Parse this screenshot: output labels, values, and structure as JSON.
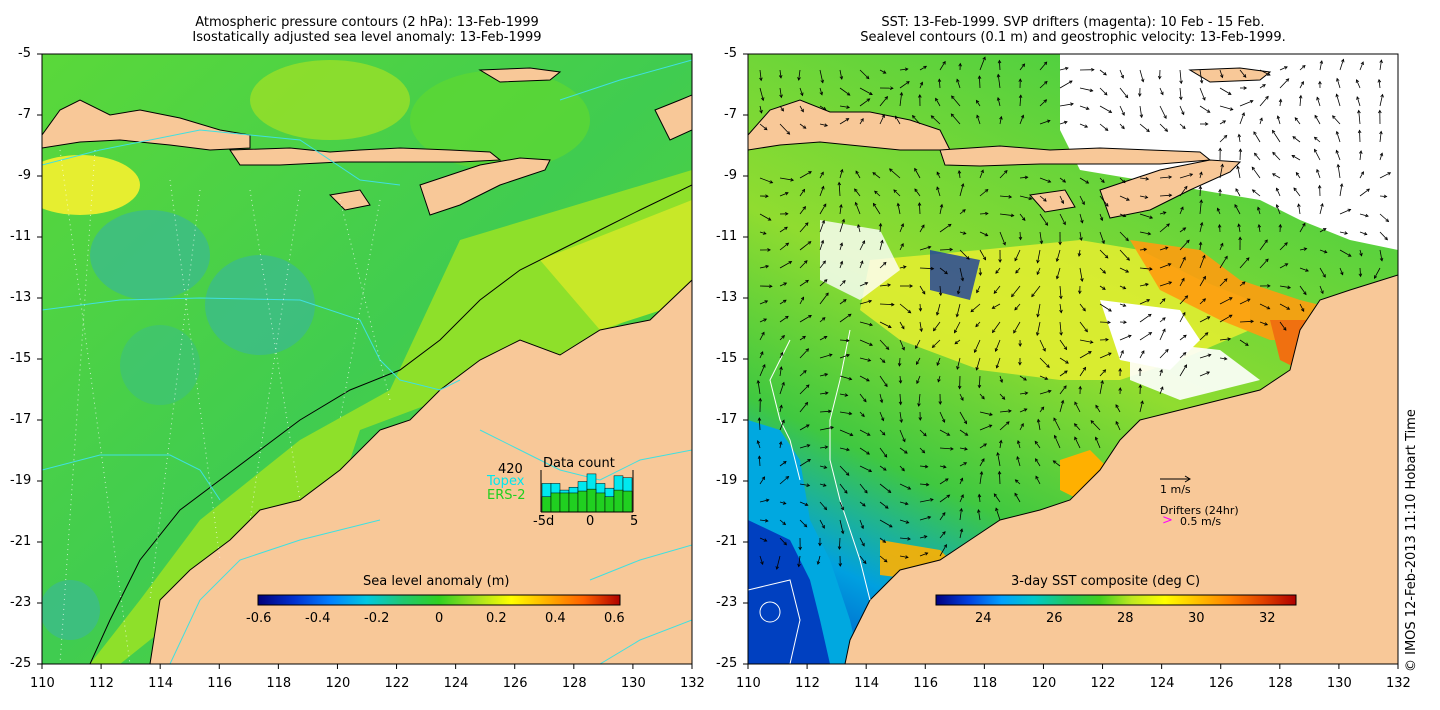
{
  "left_panel": {
    "title_line1": "Atmospheric pressure contours (2 hPa): 13-Feb-1999",
    "title_line2": "Isostatically adjusted sea level anomaly: 13-Feb-1999",
    "colorbar_title": "Sea level anomaly (m)",
    "colorbar_ticks": [
      "-0.6",
      "-0.4",
      "-0.2",
      "0",
      "0.2",
      "0.4",
      "0.6"
    ],
    "colorbar_colors": [
      "#00007a",
      "#0030d0",
      "#0080ff",
      "#00c8e0",
      "#20c870",
      "#30d020",
      "#a0e020",
      "#ffff00",
      "#ffb000",
      "#ff6000",
      "#b00000"
    ],
    "data_count": {
      "title": "Data count",
      "max_label": "420",
      "topex_label": "Topex",
      "ers2_label": "ERS-2",
      "x_ticks": [
        "-5d",
        "0",
        "5"
      ],
      "topex_color": "#00e8f0",
      "ers2_color": "#20d020",
      "topex_values": [
        300,
        300,
        230,
        260,
        320,
        400,
        300,
        250,
        380,
        360
      ],
      "ers2_values": [
        160,
        200,
        200,
        200,
        220,
        240,
        200,
        160,
        230,
        220
      ]
    }
  },
  "right_panel": {
    "title_line1": "SST: 13-Feb-1999. SVP drifters (magenta): 10 Feb - 15 Feb.",
    "title_line2": "Sealevel contours (0.1 m) and geostrophic velocity: 13-Feb-1999.",
    "colorbar_title": "3-day SST composite (deg C)",
    "colorbar_ticks": [
      "24",
      "26",
      "28",
      "30",
      "32"
    ],
    "colorbar_colors": [
      "#000080",
      "#0040e0",
      "#00a0ff",
      "#00c8c8",
      "#20c860",
      "#40d020",
      "#c0e820",
      "#ffff00",
      "#ffc000",
      "#ff8000",
      "#e04000",
      "#b00000"
    ],
    "velocity_scale_label": "1 m/s",
    "drifters_label": "Drifters (24hr)",
    "drifter_speed_label": "0.5 m/s",
    "drifter_color": "#ff00ff"
  },
  "axes": {
    "y_ticks": [
      "-5",
      "-7",
      "-9",
      "-11",
      "-13",
      "-15",
      "-17",
      "-19",
      "-21",
      "-23",
      "-25"
    ],
    "x_ticks": [
      "110",
      "112",
      "114",
      "116",
      "118",
      "120",
      "122",
      "124",
      "126",
      "128",
      "130",
      "132"
    ]
  },
  "colors": {
    "land": "#f8c898",
    "sea_green": "#4cd63a",
    "sea_light_green": "#8ee02a",
    "sea_teal": "#3ab890",
    "sea_yellow": "#e0ee30",
    "contour_cyan": "#40e0e0"
  },
  "copyright": "© IMOS 12-Feb-2013 11:10 Hobart Time"
}
